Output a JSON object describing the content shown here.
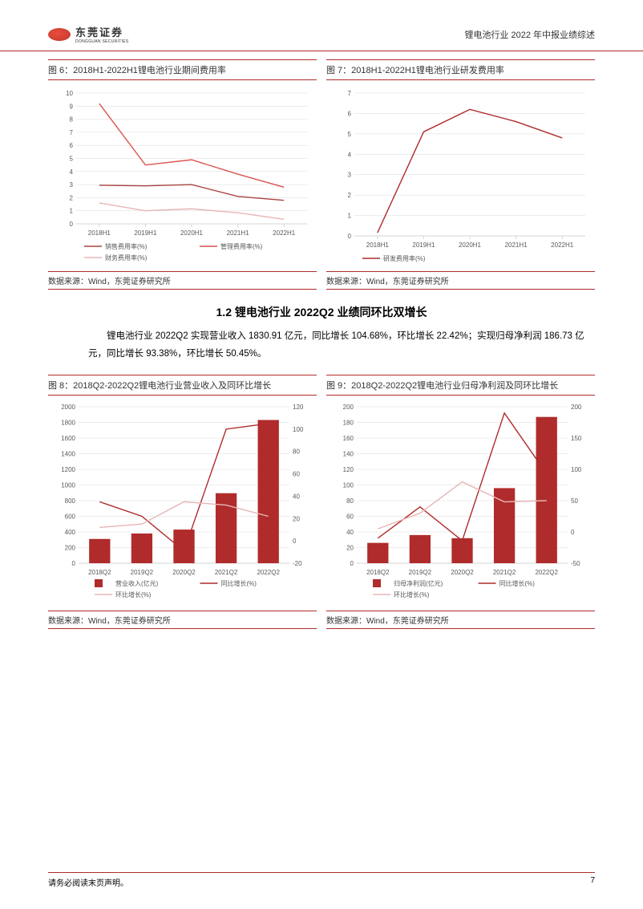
{
  "header": {
    "logo_cn": "东莞证券",
    "logo_en": "DONGGUAN SECURITIES",
    "title": "锂电池行业 2022 年中报业绩综述"
  },
  "colors": {
    "series_sales": "#a94442",
    "series_mgmt": "#d9534f",
    "series_fin": "#e8b5b5",
    "series_rd": "#b02b2b",
    "bar": "#b02b2b",
    "line_yoy": "#b02b2b",
    "line_qoq": "#e8b5b5",
    "grid": "#d9d9d9",
    "axis": "#bfbfbf",
    "text": "#595959"
  },
  "chart6": {
    "title": "图 6：2018H1-2022H1锂电池行业期间费用率",
    "categories": [
      "2018H1",
      "2019H1",
      "2020H1",
      "2021H1",
      "2022H1"
    ],
    "ylim": [
      0,
      10
    ],
    "ytick_step": 1,
    "series": [
      {
        "name": "销售费用率(%)",
        "color": "#a94442",
        "values": [
          2.95,
          2.9,
          3.0,
          2.1,
          1.8
        ]
      },
      {
        "name": "管理费用率(%)",
        "color": "#d9534f",
        "values": [
          9.2,
          4.5,
          4.9,
          3.8,
          2.8
        ]
      },
      {
        "name": "财务费用率(%)",
        "color": "#e8b5b5",
        "values": [
          1.6,
          1.0,
          1.15,
          0.85,
          0.35
        ]
      }
    ],
    "source": "数据来源：Wind，东莞证券研究所"
  },
  "chart7": {
    "title": "图 7：2018H1-2022H1锂电池行业研发费用率",
    "categories": [
      "2018H1",
      "2019H1",
      "2020H1",
      "2021H1",
      "2022H1"
    ],
    "ylim": [
      0,
      7
    ],
    "ytick_step": 1,
    "series": [
      {
        "name": "研发费用率(%)",
        "color": "#b02b2b",
        "values": [
          0.15,
          5.1,
          6.2,
          5.6,
          4.8
        ]
      }
    ],
    "source": "数据来源：Wind，东莞证券研究所"
  },
  "section": {
    "heading": "1.2 锂电池行业 2022Q2 业绩同环比双增长",
    "body": "锂电池行业 2022Q2 实现营业收入 1830.91 亿元，同比增长 104.68%，环比增长 22.42%；实现归母净利润 186.73 亿元，同比增长 93.38%，环比增长 50.45%。"
  },
  "chart8": {
    "title": "图 8：2018Q2-2022Q2锂电池行业营业收入及同环比增长",
    "categories": [
      "2018Q2",
      "2019Q2",
      "2020Q2",
      "2021Q2",
      "2022Q2"
    ],
    "ylim_left": [
      0,
      2000
    ],
    "ytick_left": 200,
    "ylim_right": [
      -20,
      120
    ],
    "ytick_right": 20,
    "bars": {
      "name": "营业收入(亿元)",
      "color": "#b02b2b",
      "values": [
        310,
        380,
        430,
        895,
        1831
      ]
    },
    "line_yoy": {
      "name": "同比增长(%)",
      "color": "#b02b2b",
      "values": [
        35,
        22,
        -9,
        100,
        105
      ]
    },
    "line_qoq": {
      "name": "环比增长(%)",
      "color": "#e8b5b5",
      "values": [
        12,
        15,
        35,
        32,
        22
      ]
    },
    "source": "数据来源：Wind，东莞证券研究所"
  },
  "chart9": {
    "title": "图 9：2018Q2-2022Q2锂电池行业归母净利润及同环比增长",
    "categories": [
      "2018Q2",
      "2019Q2",
      "2020Q2",
      "2021Q2",
      "2022Q2"
    ],
    "ylim_left": [
      0,
      200
    ],
    "ytick_left": 20,
    "ylim_right": [
      -50,
      200
    ],
    "ytick_right": 50,
    "bars": {
      "name": "归母净利润(亿元)",
      "color": "#b02b2b",
      "values": [
        26,
        36,
        32,
        96,
        187
      ]
    },
    "line_yoy": {
      "name": "同比增长(%)",
      "color": "#b02b2b",
      "values": [
        -10,
        40,
        -14,
        190,
        93
      ]
    },
    "line_qoq": {
      "name": "环比增长(%)",
      "color": "#e8b5b5",
      "values": [
        5,
        30,
        80,
        48,
        50
      ]
    },
    "source": "数据来源：Wind，东莞证券研究所"
  },
  "footer": {
    "disclaimer": "请务必阅读末页声明。",
    "page": "7"
  }
}
